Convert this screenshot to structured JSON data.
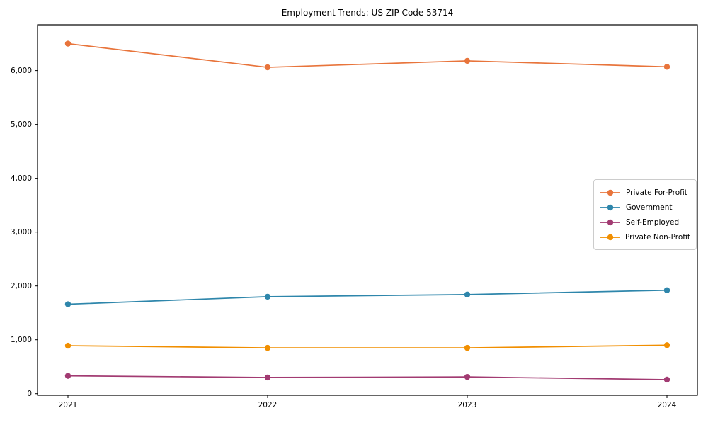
{
  "figure": {
    "background_color": "#ffffff",
    "frame_color": "#000000"
  },
  "chart_data": {
    "type": "line",
    "title": "Employment Trends: US ZIP Code 53714",
    "xlabel": "",
    "ylabel": "",
    "x": [
      2021,
      2022,
      2023,
      2024
    ],
    "x_tick_labels": [
      "2021",
      "2022",
      "2023",
      "2024"
    ],
    "series": [
      {
        "name": "Private For-Profit",
        "color": "#e8743b",
        "values": [
          6500,
          6060,
          6180,
          6070
        ]
      },
      {
        "name": "Government",
        "color": "#2e86ab",
        "values": [
          1660,
          1800,
          1840,
          1920
        ]
      },
      {
        "name": "Self-Employed",
        "color": "#a23b72",
        "values": [
          330,
          300,
          310,
          260
        ]
      },
      {
        "name": "Private Non-Profit",
        "color": "#f18f01",
        "values": [
          890,
          850,
          850,
          900
        ]
      }
    ],
    "yticks": [
      0,
      1000,
      2000,
      3000,
      4000,
      5000,
      6000
    ],
    "ytick_labels": [
      "0",
      "1,000",
      "2,000",
      "3,000",
      "4,000",
      "5,000",
      "6,000"
    ],
    "ylim": [
      -30,
      6850
    ],
    "grid": false,
    "legend_position": "center-right",
    "marker": "circle",
    "marker_radius": 4.2,
    "line_width": 1.7
  }
}
